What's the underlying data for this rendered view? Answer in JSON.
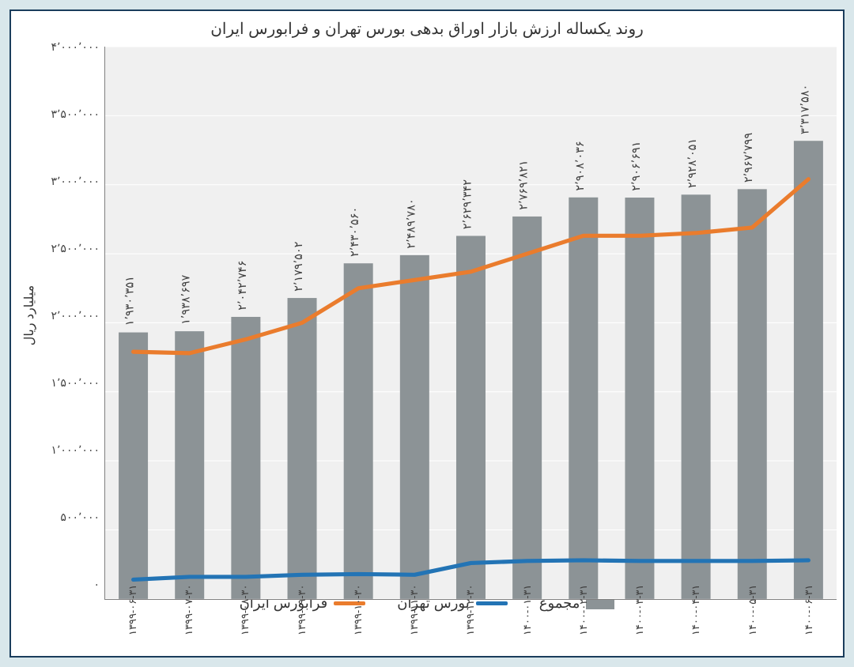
{
  "title": "روند یکساله ارزش بازار اوراق بدهی بورس تهران و فرابورس ایران",
  "ylabel": "میلیارد ریال",
  "chart": {
    "type": "bar+line",
    "background_color": "#f0f0f0",
    "grid_color": "#ffffff",
    "frame_border_color": "#1a3d5c",
    "outer_bg": "#d9e7eb",
    "ymin": 0,
    "ymax": 4000000,
    "ytick_step": 500000,
    "yticks": [
      "۰",
      "۵۰۰٬۰۰۰",
      "۱٬۰۰۰٬۰۰۰",
      "۱٬۵۰۰٬۰۰۰",
      "۲٬۰۰۰٬۰۰۰",
      "۲٬۵۰۰٬۰۰۰",
      "۳٬۰۰۰٬۰۰۰",
      "۳٬۵۰۰٬۰۰۰",
      "۴٬۰۰۰٬۰۰۰"
    ],
    "categories": [
      "۱۳۹۹-۰۶-۳۱",
      "۱۳۹۹-۰۷-۳۰",
      "۱۳۹۹-۰۸-۳۰",
      "۱۳۹۹-۰۹-۳۰",
      "۱۳۹۹-۱۰-۳۰",
      "۱۳۹۹-۱۱-۳۰",
      "۱۳۹۹-۱۲-۳۰",
      "۱۴۰۰-۰۱-۳۱",
      "۱۴۰۰-۰۲-۳۱",
      "۱۴۰۰-۰۳-۳۱",
      "۱۴۰۰-۰۴-۳۱",
      "۱۴۰۰-۰۵-۳۱",
      "۱۴۰۰-۰۶-۳۱"
    ],
    "series": {
      "total": {
        "label": "مجموع",
        "type": "bar",
        "color": "#8c9396",
        "bar_width_ratio": 0.52,
        "values": [
          1930351,
          1938697,
          2042746,
          2179502,
          2430560,
          2489780,
          2629342,
          2769821,
          2908036,
          2906691,
          2928051,
          2967799,
          3317580
        ],
        "value_labels": [
          "۱٬۹۳۰٬۳۵۱",
          "۱٬۹۳۸٬۶۹۷",
          "۲٬۰۴۲٬۷۴۶",
          "۲٬۱۷۹٬۵۰۲",
          "۲٬۴۳۰٬۵۶۰",
          "۲٬۴۸۹٬۷۸۰",
          "۲٬۶۲۹٬۳۴۲",
          "۲٬۷۶۹٬۸۲۱",
          "۲٬۹۰۸٬۰۳۶",
          "۲٬۹۰۶٬۶۹۱",
          "۲٬۹۲۸٬۰۵۱",
          "۲٬۹۶۷٬۷۹۹",
          "۳٬۳۱۷٬۵۸۰"
        ]
      },
      "tehran": {
        "label": "بورس تهران",
        "type": "line",
        "color": "#2374b5",
        "line_width": 5,
        "values": [
          140000,
          160000,
          160000,
          175000,
          180000,
          175000,
          260000,
          275000,
          280000,
          275000,
          275000,
          275000,
          280000
        ]
      },
      "farabourse": {
        "label": "فرابورس ایران",
        "type": "line",
        "color": "#ea7c2d",
        "line_width": 5,
        "values": [
          1790000,
          1780000,
          1880000,
          2000000,
          2250000,
          2310000,
          2370000,
          2500000,
          2630000,
          2630000,
          2650000,
          2690000,
          3040000
        ]
      }
    },
    "legend_order": [
      "total",
      "tehran",
      "farabourse"
    ],
    "title_fontsize": 20,
    "label_fontsize": 16,
    "tick_fontsize": 14,
    "barlabel_fontsize": 14
  }
}
